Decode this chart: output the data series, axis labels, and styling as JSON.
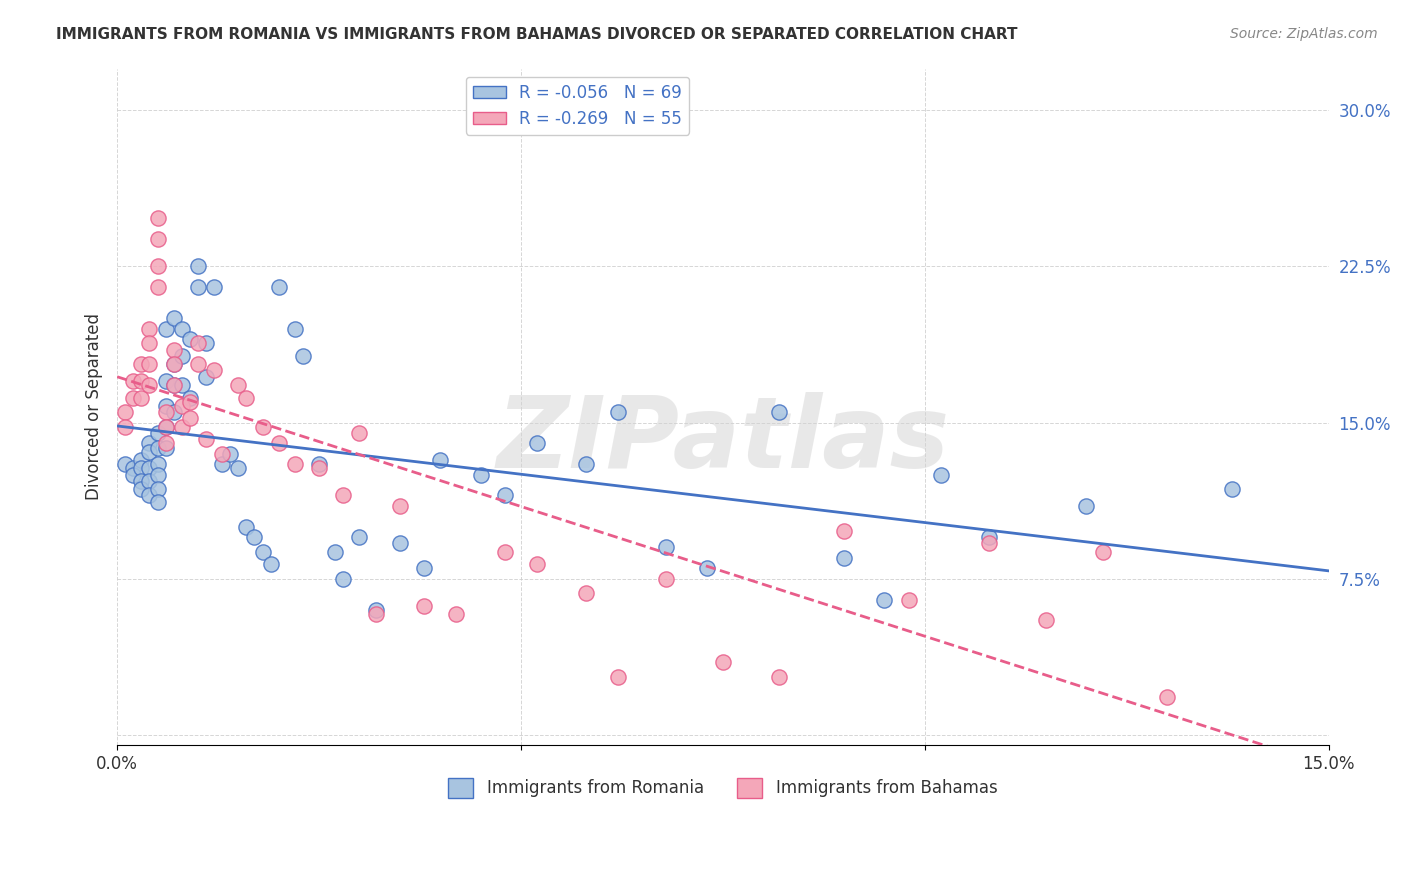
{
  "title": "IMMIGRANTS FROM ROMANIA VS IMMIGRANTS FROM BAHAMAS DIVORCED OR SEPARATED CORRELATION CHART",
  "source": "Source: ZipAtlas.com",
  "xlabel_romania": "Immigrants from Romania",
  "xlabel_bahamas": "Immigrants from Bahamas",
  "ylabel": "Divorced or Separated",
  "xlim": [
    0,
    0.15
  ],
  "ylim": [
    -0.005,
    0.32
  ],
  "xticks": [
    0.0,
    0.05,
    0.1,
    0.15
  ],
  "yticks": [
    0.0,
    0.075,
    0.15,
    0.225,
    0.3
  ],
  "xtick_labels": [
    "0.0%",
    "",
    "",
    "15.0%"
  ],
  "ytick_labels": [
    "",
    "7.5%",
    "15.0%",
    "22.5%",
    "30.0%"
  ],
  "romania_R": -0.056,
  "romania_N": 69,
  "bahamas_R": -0.269,
  "bahamas_N": 55,
  "romania_color": "#a8c4e0",
  "bahamas_color": "#f4a7b9",
  "romania_line_color": "#4472c4",
  "bahamas_line_color": "#e85d8a",
  "watermark": "ZIPatlas",
  "romania_x": [
    0.001,
    0.002,
    0.002,
    0.003,
    0.003,
    0.003,
    0.003,
    0.004,
    0.004,
    0.004,
    0.004,
    0.004,
    0.005,
    0.005,
    0.005,
    0.005,
    0.005,
    0.005,
    0.006,
    0.006,
    0.006,
    0.006,
    0.006,
    0.007,
    0.007,
    0.007,
    0.007,
    0.008,
    0.008,
    0.008,
    0.009,
    0.009,
    0.01,
    0.01,
    0.011,
    0.011,
    0.012,
    0.013,
    0.014,
    0.015,
    0.016,
    0.017,
    0.018,
    0.019,
    0.02,
    0.022,
    0.023,
    0.025,
    0.027,
    0.028,
    0.03,
    0.032,
    0.035,
    0.038,
    0.04,
    0.045,
    0.048,
    0.052,
    0.058,
    0.062,
    0.068,
    0.073,
    0.082,
    0.09,
    0.095,
    0.102,
    0.108,
    0.12,
    0.138
  ],
  "romania_y": [
    0.13,
    0.128,
    0.125,
    0.132,
    0.128,
    0.122,
    0.118,
    0.14,
    0.136,
    0.128,
    0.122,
    0.115,
    0.145,
    0.138,
    0.13,
    0.125,
    0.118,
    0.112,
    0.195,
    0.17,
    0.158,
    0.148,
    0.138,
    0.2,
    0.178,
    0.168,
    0.155,
    0.195,
    0.182,
    0.168,
    0.19,
    0.162,
    0.225,
    0.215,
    0.188,
    0.172,
    0.215,
    0.13,
    0.135,
    0.128,
    0.1,
    0.095,
    0.088,
    0.082,
    0.215,
    0.195,
    0.182,
    0.13,
    0.088,
    0.075,
    0.095,
    0.06,
    0.092,
    0.08,
    0.132,
    0.125,
    0.115,
    0.14,
    0.13,
    0.155,
    0.09,
    0.08,
    0.155,
    0.085,
    0.065,
    0.125,
    0.095,
    0.11,
    0.118
  ],
  "bahamas_x": [
    0.001,
    0.001,
    0.002,
    0.002,
    0.003,
    0.003,
    0.003,
    0.004,
    0.004,
    0.004,
    0.004,
    0.005,
    0.005,
    0.005,
    0.005,
    0.006,
    0.006,
    0.006,
    0.007,
    0.007,
    0.007,
    0.008,
    0.008,
    0.009,
    0.009,
    0.01,
    0.01,
    0.011,
    0.012,
    0.013,
    0.015,
    0.016,
    0.018,
    0.02,
    0.022,
    0.025,
    0.028,
    0.03,
    0.032,
    0.035,
    0.038,
    0.042,
    0.048,
    0.052,
    0.058,
    0.062,
    0.068,
    0.075,
    0.082,
    0.09,
    0.098,
    0.108,
    0.115,
    0.122,
    0.13
  ],
  "bahamas_y": [
    0.155,
    0.148,
    0.17,
    0.162,
    0.178,
    0.17,
    0.162,
    0.195,
    0.188,
    0.178,
    0.168,
    0.248,
    0.238,
    0.225,
    0.215,
    0.155,
    0.148,
    0.14,
    0.185,
    0.178,
    0.168,
    0.158,
    0.148,
    0.16,
    0.152,
    0.188,
    0.178,
    0.142,
    0.175,
    0.135,
    0.168,
    0.162,
    0.148,
    0.14,
    0.13,
    0.128,
    0.115,
    0.145,
    0.058,
    0.11,
    0.062,
    0.058,
    0.088,
    0.082,
    0.068,
    0.028,
    0.075,
    0.035,
    0.028,
    0.098,
    0.065,
    0.092,
    0.055,
    0.088,
    0.018
  ]
}
